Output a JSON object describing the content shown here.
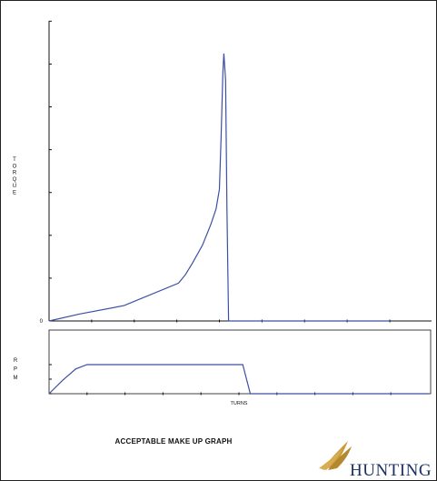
{
  "colors": {
    "line": "#3d4fa3",
    "axis": "#111111",
    "logo_navy": "#1a2f63",
    "logo_gold": "#c89b3c"
  },
  "chart_data": [
    {
      "type": "line",
      "ylabel": "TORQUE",
      "ytick_labels": [
        "0"
      ],
      "xlim": [
        0,
        10
      ],
      "ylim": [
        0,
        1
      ],
      "grid": false,
      "series": [
        {
          "x": [
            0,
            0.9,
            2.2,
            3.8,
            4.0,
            4.2,
            4.5,
            4.75,
            4.9,
            5.0,
            5.05,
            5.1,
            5.13,
            5.18,
            5.22,
            5.27,
            5.4,
            10
          ],
          "y": [
            0,
            0.025,
            0.055,
            0.135,
            0.165,
            0.205,
            0.27,
            0.345,
            0.4,
            0.47,
            0.66,
            0.885,
            0.955,
            0.86,
            0.4,
            0,
            0,
            0
          ]
        }
      ]
    },
    {
      "type": "line",
      "ylabel": "RPM",
      "xlabel": "TURNS",
      "xlim": [
        0,
        10
      ],
      "ylim": [
        0,
        1
      ],
      "grid": false,
      "series": [
        {
          "x": [
            0,
            0.35,
            0.7,
            1.0,
            5.1,
            5.3,
            5.4,
            10
          ],
          "y": [
            0,
            0.45,
            0.85,
            1.0,
            1.0,
            0,
            0,
            0
          ]
        }
      ]
    }
  ],
  "caption": "ACCEPTABLE MAKE UP GRAPH",
  "logo": {
    "text": "HUNTING"
  }
}
